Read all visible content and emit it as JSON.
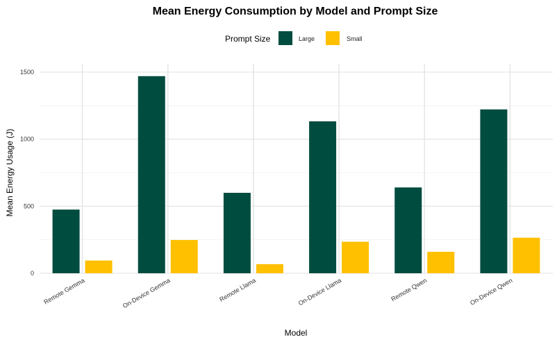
{
  "chart_data": {
    "type": "bar",
    "title": "Mean Energy Consumption by Model and Prompt Size",
    "xlabel": "Model",
    "ylabel": "Mean Energy Usage (J)",
    "categories": [
      "Remote Gemma",
      "On-Device Gemma",
      "Remote Llama",
      "On-Device Llama",
      "Remote Qwen",
      "On-Device Qwen"
    ],
    "series": [
      {
        "name": "Large",
        "color": "#004c3f",
        "values": [
          475,
          1470,
          600,
          1133,
          640,
          1222
        ]
      },
      {
        "name": "Small",
        "color": "#ffc000",
        "values": [
          95,
          248,
          68,
          235,
          160,
          265
        ]
      }
    ],
    "legend": {
      "title": "Prompt Size",
      "placement": "top-center"
    },
    "ylim": [
      0,
      1500
    ],
    "yticks": [
      0,
      500,
      1000,
      1500
    ],
    "grid": true
  }
}
